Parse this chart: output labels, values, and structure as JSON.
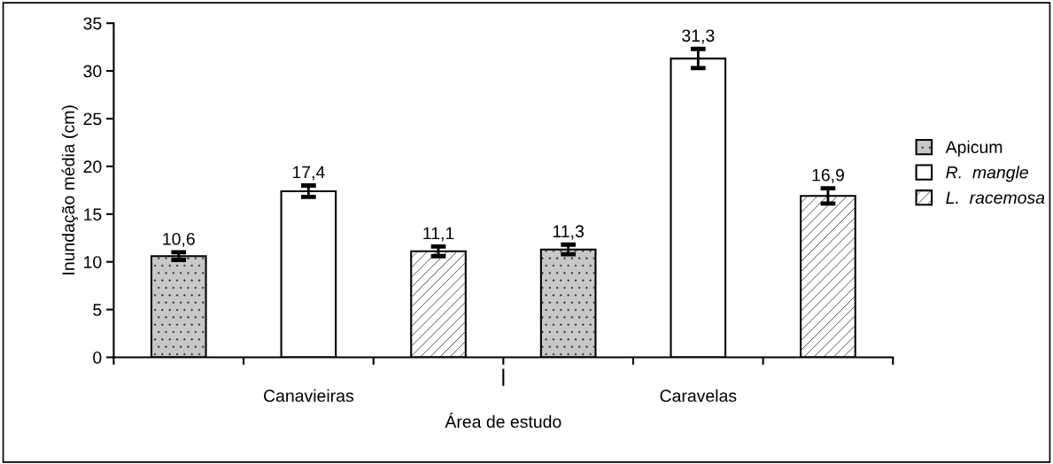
{
  "chart_data": {
    "type": "bar",
    "xlabel": "Área de estudo",
    "ylabel": "Inundação média (cm)",
    "categories": [
      "Canavieiras",
      "Caravelas"
    ],
    "series": [
      {
        "name": "Apicum",
        "color": "#c8c8c8",
        "values": [
          10.6,
          11.3
        ],
        "errors": [
          0.4,
          0.5
        ],
        "value_labels": [
          "10,6",
          "11,3"
        ]
      },
      {
        "name": "R.  mangle",
        "color": "#ffffff",
        "values": [
          17.4,
          31.3
        ],
        "errors": [
          0.6,
          1.0
        ],
        "value_labels": [
          "17,4",
          "31,3"
        ]
      },
      {
        "name": "L.  racemosa",
        "color": "#ffffff",
        "values": [
          11.1,
          16.9
        ],
        "errors": [
          0.5,
          0.8
        ],
        "value_labels": [
          "11,1",
          "16,9"
        ]
      }
    ],
    "ylim": [
      0,
      35
    ],
    "yticks": [
      0,
      5,
      10,
      15,
      20,
      25,
      30,
      35
    ],
    "grid": false,
    "legend": "right"
  }
}
